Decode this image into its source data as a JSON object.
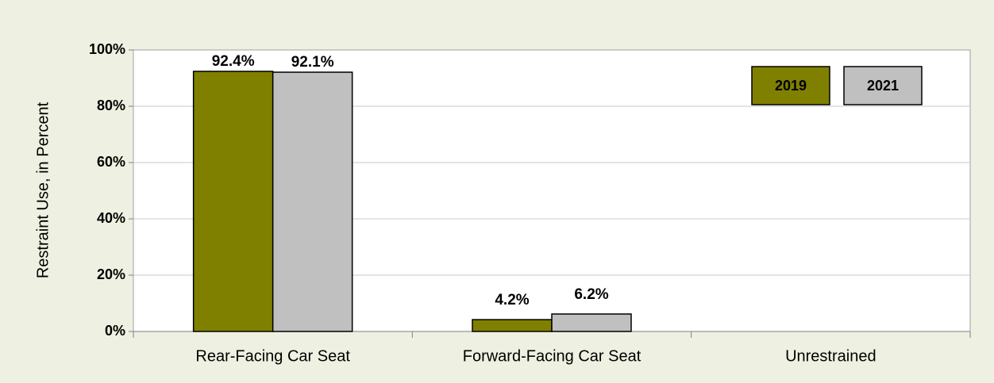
{
  "chart_data": {
    "type": "bar",
    "y_label": "Restraint Use, in Percent",
    "categories": [
      "Rear-Facing Car Seat",
      "Forward-Facing Car Seat",
      "Unrestrained"
    ],
    "series": [
      {
        "name": "2019",
        "color": "#808000",
        "values": [
          92.4,
          4.2,
          null
        ],
        "value_labels": [
          "92.4%",
          "4.2%",
          null
        ]
      },
      {
        "name": "2021",
        "color": "#c0c0c0",
        "values": [
          92.1,
          6.2,
          null
        ],
        "value_labels": [
          "92.1%",
          "6.2%",
          null
        ]
      }
    ],
    "ylim": [
      0,
      100
    ],
    "yticks": [
      {
        "value": 0,
        "label": "0%"
      },
      {
        "value": 20,
        "label": "20%"
      },
      {
        "value": 40,
        "label": "40%"
      },
      {
        "value": 60,
        "label": "60%"
      },
      {
        "value": 80,
        "label": "80%"
      },
      {
        "value": 100,
        "label": "100%"
      }
    ],
    "grid": true,
    "legend": "upper right"
  }
}
